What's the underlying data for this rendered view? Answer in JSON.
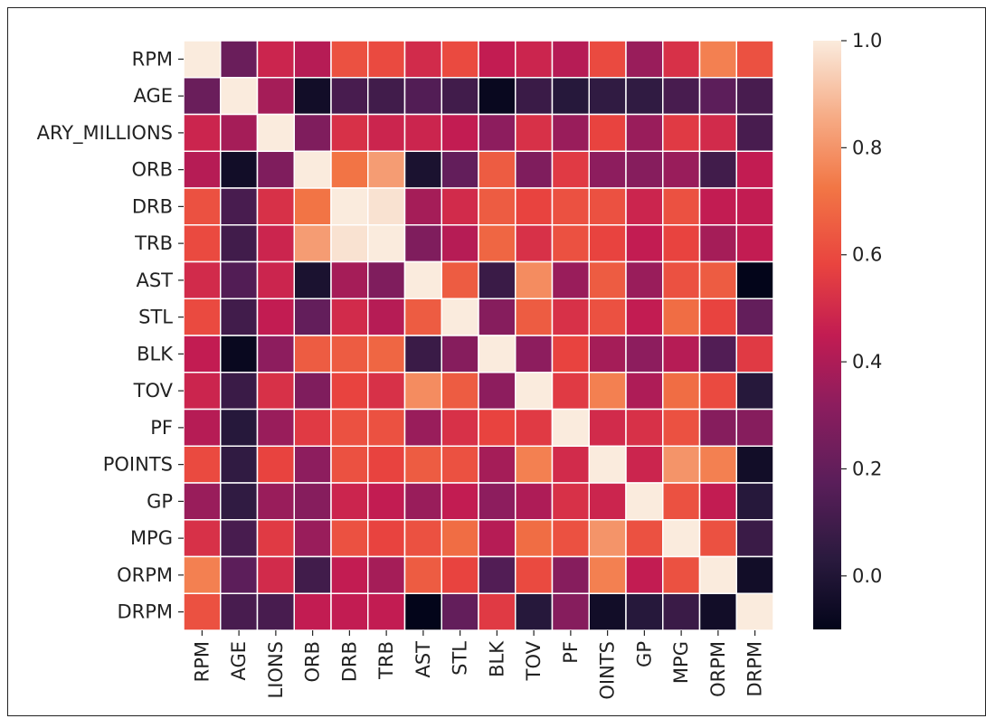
{
  "chart_data": {
    "type": "heatmap",
    "title": "",
    "xlabel": "",
    "ylabel": "",
    "row_labels": [
      "RPM",
      "AGE",
      "ARY_MILLIONS",
      "ORB",
      "DRB",
      "TRB",
      "AST",
      "STL",
      "BLK",
      "TOV",
      "PF",
      "POINTS",
      "GP",
      "MPG",
      "ORPM",
      "DRPM"
    ],
    "col_labels": [
      "RPM",
      "AGE",
      "LIONS",
      "ORB",
      "DRB",
      "TRB",
      "AST",
      "STL",
      "BLK",
      "TOV",
      "PF",
      "OINTS",
      "GP",
      "MPG",
      "ORPM",
      "DRPM"
    ],
    "values": [
      [
        1.0,
        0.22,
        0.48,
        0.42,
        0.62,
        0.6,
        0.5,
        0.6,
        0.45,
        0.48,
        0.42,
        0.6,
        0.35,
        0.52,
        0.75,
        0.62
      ],
      [
        0.22,
        1.0,
        0.38,
        -0.05,
        0.12,
        0.1,
        0.15,
        0.1,
        -0.08,
        0.08,
        0.02,
        0.05,
        0.05,
        0.12,
        0.18,
        0.12
      ],
      [
        0.48,
        0.38,
        1.0,
        0.28,
        0.52,
        0.48,
        0.48,
        0.45,
        0.32,
        0.52,
        0.35,
        0.58,
        0.35,
        0.55,
        0.5,
        0.12
      ],
      [
        0.42,
        -0.05,
        0.28,
        1.0,
        0.72,
        0.82,
        -0.02,
        0.2,
        0.65,
        0.28,
        0.55,
        0.32,
        0.3,
        0.35,
        0.1,
        0.45
      ],
      [
        0.62,
        0.12,
        0.52,
        0.72,
        1.0,
        0.98,
        0.38,
        0.5,
        0.65,
        0.58,
        0.62,
        0.62,
        0.48,
        0.62,
        0.45,
        0.45
      ],
      [
        0.6,
        0.1,
        0.48,
        0.82,
        0.98,
        1.0,
        0.28,
        0.42,
        0.68,
        0.52,
        0.62,
        0.58,
        0.45,
        0.58,
        0.38,
        0.45
      ],
      [
        0.5,
        0.15,
        0.48,
        -0.02,
        0.38,
        0.28,
        1.0,
        0.65,
        0.08,
        0.78,
        0.35,
        0.65,
        0.35,
        0.62,
        0.65,
        -0.1
      ],
      [
        0.6,
        0.1,
        0.45,
        0.2,
        0.5,
        0.42,
        0.65,
        1.0,
        0.3,
        0.65,
        0.52,
        0.62,
        0.45,
        0.7,
        0.58,
        0.2
      ],
      [
        0.45,
        -0.08,
        0.32,
        0.65,
        0.65,
        0.68,
        0.08,
        0.3,
        1.0,
        0.32,
        0.58,
        0.38,
        0.32,
        0.42,
        0.15,
        0.55
      ],
      [
        0.48,
        0.08,
        0.52,
        0.28,
        0.58,
        0.52,
        0.78,
        0.65,
        0.32,
        1.0,
        0.55,
        0.75,
        0.4,
        0.7,
        0.6,
        0.02
      ],
      [
        0.42,
        0.02,
        0.35,
        0.55,
        0.62,
        0.62,
        0.35,
        0.52,
        0.58,
        0.55,
        1.0,
        0.5,
        0.52,
        0.62,
        0.3,
        0.3
      ],
      [
        0.6,
        0.05,
        0.58,
        0.32,
        0.62,
        0.58,
        0.65,
        0.62,
        0.38,
        0.75,
        0.5,
        1.0,
        0.48,
        0.8,
        0.75,
        -0.05
      ],
      [
        0.35,
        0.05,
        0.35,
        0.3,
        0.48,
        0.45,
        0.35,
        0.45,
        0.32,
        0.4,
        0.52,
        0.48,
        1.0,
        0.62,
        0.45,
        0.02
      ],
      [
        0.52,
        0.12,
        0.55,
        0.35,
        0.62,
        0.58,
        0.62,
        0.7,
        0.42,
        0.7,
        0.62,
        0.8,
        0.62,
        1.0,
        0.62,
        0.08
      ],
      [
        0.75,
        0.18,
        0.5,
        0.1,
        0.45,
        0.38,
        0.65,
        0.58,
        0.15,
        0.6,
        0.3,
        0.75,
        0.45,
        0.62,
        1.0,
        -0.05
      ],
      [
        0.62,
        0.12,
        0.12,
        0.45,
        0.45,
        0.45,
        -0.1,
        0.2,
        0.55,
        0.02,
        0.3,
        -0.05,
        0.02,
        0.08,
        -0.05,
        1.0
      ]
    ],
    "colormap": "rocket",
    "vmin": -0.1,
    "vmax": 1.0,
    "colorbar_ticks": [
      "1.0",
      "0.8",
      "0.6",
      "0.4",
      "0.2",
      "0.0"
    ],
    "colorbar_tick_values": [
      1.0,
      0.8,
      0.6,
      0.4,
      0.2,
      0.0
    ],
    "cell_border_color": "#ffffff",
    "grid": false
  }
}
